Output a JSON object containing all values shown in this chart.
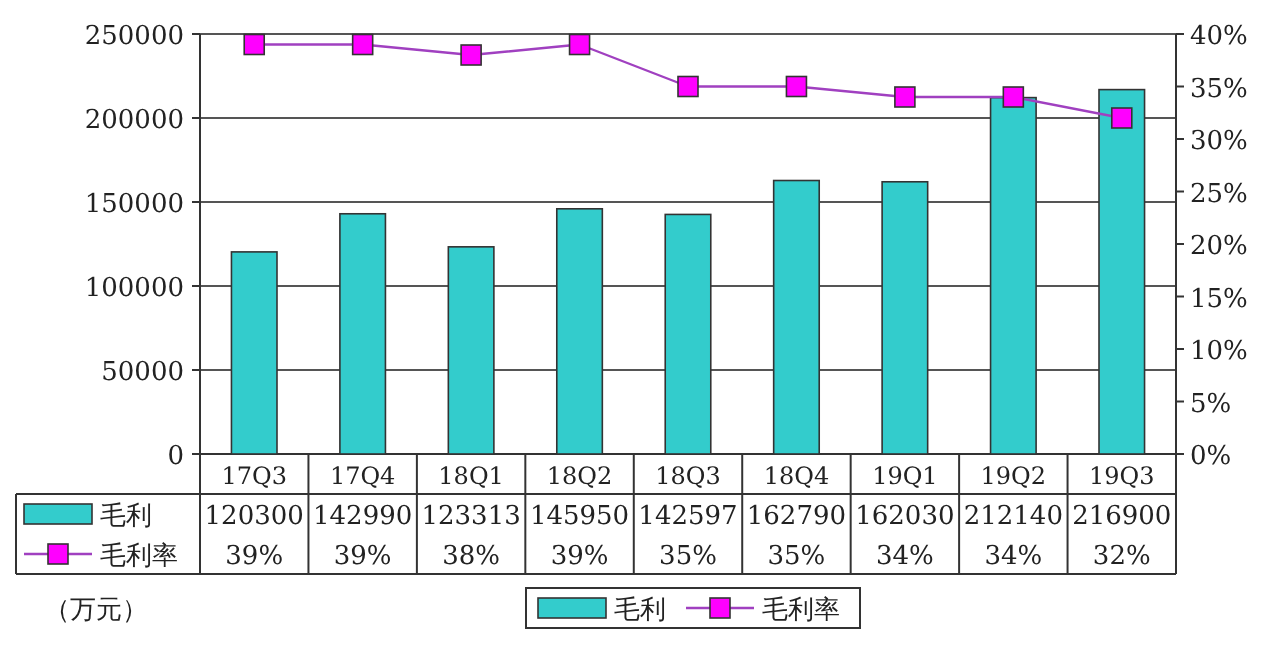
{
  "chart_data": {
    "type": "bar",
    "categories": [
      "17Q3",
      "17Q4",
      "18Q1",
      "18Q2",
      "18Q3",
      "18Q4",
      "19Q1",
      "19Q2",
      "19Q3"
    ],
    "series": [
      {
        "name": "毛利",
        "color": "#33cccc",
        "values": [
          120300,
          142990,
          123313,
          145950,
          142597,
          162790,
          162030,
          212140,
          216900
        ],
        "value_labels": [
          "120300",
          "142990",
          "123313",
          "145950",
          "142597",
          "162790",
          "162030",
          "212140",
          "216900"
        ]
      },
      {
        "name": "毛利率",
        "type": "line",
        "axis": "y2",
        "color": "#ff00ff",
        "marker": "square",
        "values": [
          39,
          39,
          38,
          39,
          35,
          35,
          34,
          34,
          32
        ],
        "value_labels": [
          "39%",
          "39%",
          "38%",
          "39%",
          "35%",
          "35%",
          "34%",
          "34%",
          "32%"
        ]
      }
    ],
    "ylim": [
      0,
      250000
    ],
    "yticks": [
      0,
      50000,
      100000,
      150000,
      200000,
      250000
    ],
    "y2lim": [
      0,
      40
    ],
    "y2ticks": [
      {
        "value": 0,
        "label": "0%"
      },
      {
        "value": 5,
        "label": "5%"
      },
      {
        "value": 10,
        "label": "10%"
      },
      {
        "value": 15,
        "label": "15%"
      },
      {
        "value": 20,
        "label": "20%"
      },
      {
        "value": 25,
        "label": "25%"
      },
      {
        "value": 30,
        "label": "30%"
      },
      {
        "value": 35,
        "label": "35%"
      },
      {
        "value": 40,
        "label": "40%"
      }
    ],
    "grid": "y",
    "legend": "bottom",
    "annotations": [
      "（万元）"
    ]
  }
}
